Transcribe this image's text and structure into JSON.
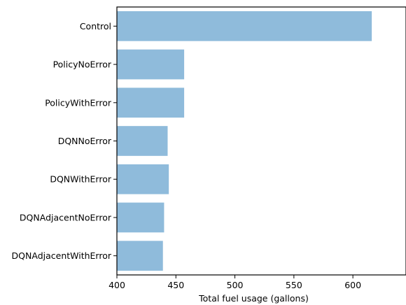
{
  "chart_data": {
    "type": "bar",
    "orientation": "horizontal",
    "categories": [
      "Control",
      "PolicyNoError",
      "PolicyWithError",
      "DQNNoError",
      "DQNWithError",
      "DQNAdjacentNoError",
      "DQNAdjacentWithError"
    ],
    "values": [
      616,
      457,
      457,
      443,
      444,
      440,
      439
    ],
    "title": "",
    "xlabel": "Total fuel usage (gallons)",
    "ylabel": "",
    "xlim": [
      400,
      645
    ],
    "xticks": [
      "400",
      "450",
      "500",
      "550",
      "600"
    ],
    "bar_color": "#8fbbdb",
    "grid": false
  }
}
